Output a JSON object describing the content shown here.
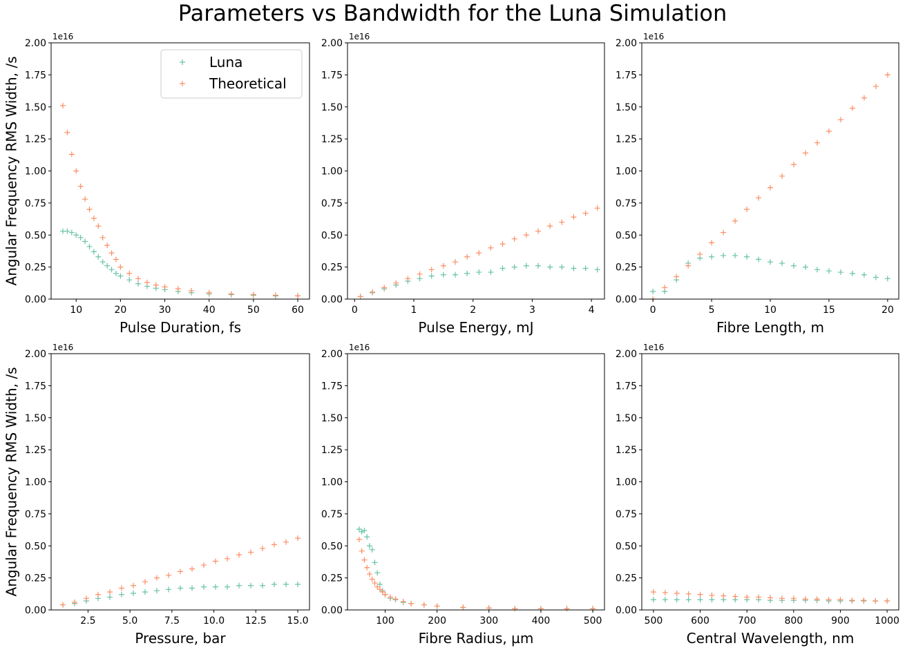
{
  "figure": {
    "suptitle": "Parameters vs Bandwidth for the Luna Simulation"
  },
  "colors": {
    "luna": "#66c2a5",
    "theoretical": "#fc8d62"
  },
  "chart_data": [
    {
      "type": "scatter",
      "xlabel": "Pulse Duration, fs",
      "ylabel": "Angular Frequency RMS Width, /s",
      "y_offset_label": "1e16",
      "xlim": [
        4.35,
        62.65
      ],
      "ylim": [
        0,
        2.0
      ],
      "xticks": [
        10,
        20,
        30,
        40,
        50,
        60
      ],
      "xtick_labels": [
        "10",
        "20",
        "30",
        "40",
        "50",
        "60"
      ],
      "yticks": [
        0,
        0.25,
        0.5,
        0.75,
        1.0,
        1.25,
        1.5,
        1.75,
        2.0
      ],
      "ytick_labels": [
        "0.00",
        "0.25",
        "0.50",
        "0.75",
        "1.00",
        "1.25",
        "1.50",
        "1.75",
        "2.00"
      ],
      "legend": {
        "position": "upper-right",
        "entries": [
          "Luna",
          "Theoretical"
        ]
      },
      "series": [
        {
          "name": "Luna",
          "marker": "+",
          "x": [
            7,
            8,
            9,
            10,
            11,
            12,
            13,
            14,
            15,
            16,
            17,
            18,
            19,
            20,
            22,
            24,
            26,
            28,
            30,
            33,
            36,
            40,
            45,
            50,
            55,
            60
          ],
          "y": [
            0.53,
            0.53,
            0.52,
            0.5,
            0.48,
            0.45,
            0.41,
            0.37,
            0.33,
            0.29,
            0.26,
            0.23,
            0.2,
            0.18,
            0.15,
            0.12,
            0.1,
            0.085,
            0.075,
            0.06,
            0.05,
            0.04,
            0.035,
            0.03,
            0.025,
            0.025
          ]
        },
        {
          "name": "Theoretical",
          "marker": "+",
          "x": [
            7,
            8,
            9,
            10,
            11,
            12,
            13,
            14,
            15,
            16,
            17,
            18,
            19,
            20,
            22,
            24,
            26,
            28,
            30,
            33,
            36,
            40,
            45,
            50,
            55,
            60
          ],
          "y": [
            1.51,
            1.3,
            1.13,
            1.0,
            0.88,
            0.78,
            0.7,
            0.63,
            0.57,
            0.48,
            0.42,
            0.36,
            0.31,
            0.25,
            0.2,
            0.16,
            0.13,
            0.11,
            0.095,
            0.08,
            0.065,
            0.05,
            0.04,
            0.035,
            0.03,
            0.025
          ]
        }
      ]
    },
    {
      "type": "scatter",
      "xlabel": "Pulse Energy, mJ",
      "y_offset_label": "1e16",
      "xlim": [
        -0.12,
        4.22
      ],
      "ylim": [
        0,
        2.0
      ],
      "xticks": [
        0,
        1,
        2,
        3,
        4
      ],
      "xtick_labels": [
        "0",
        "1",
        "2",
        "3",
        "4"
      ],
      "yticks": [
        0,
        0.25,
        0.5,
        0.75,
        1.0,
        1.25,
        1.5,
        1.75,
        2.0
      ],
      "ytick_labels": [
        "0.00",
        "0.25",
        "0.50",
        "0.75",
        "1.00",
        "1.25",
        "1.50",
        "1.75",
        "2.00"
      ],
      "series": [
        {
          "name": "Luna",
          "marker": "+",
          "x": [
            0.1,
            0.3,
            0.5,
            0.7,
            0.9,
            1.1,
            1.3,
            1.5,
            1.7,
            1.9,
            2.1,
            2.3,
            2.5,
            2.7,
            2.9,
            3.1,
            3.3,
            3.5,
            3.7,
            3.9,
            4.1
          ],
          "y": [
            0.02,
            0.05,
            0.08,
            0.11,
            0.14,
            0.16,
            0.18,
            0.19,
            0.19,
            0.2,
            0.21,
            0.21,
            0.24,
            0.25,
            0.26,
            0.26,
            0.25,
            0.25,
            0.24,
            0.24,
            0.23
          ]
        },
        {
          "name": "Theoretical",
          "marker": "+",
          "x": [
            0.1,
            0.3,
            0.5,
            0.7,
            0.9,
            1.1,
            1.3,
            1.5,
            1.7,
            1.9,
            2.1,
            2.3,
            2.5,
            2.7,
            2.9,
            3.1,
            3.3,
            3.5,
            3.7,
            3.9,
            4.1
          ],
          "y": [
            0.02,
            0.055,
            0.09,
            0.125,
            0.16,
            0.195,
            0.23,
            0.26,
            0.29,
            0.33,
            0.36,
            0.4,
            0.43,
            0.47,
            0.5,
            0.53,
            0.57,
            0.6,
            0.64,
            0.67,
            0.71
          ]
        }
      ]
    },
    {
      "type": "scatter",
      "xlabel": "Fibre Length, m",
      "y_offset_label": "1e16",
      "xlim": [
        -0.95,
        20.95
      ],
      "ylim": [
        0,
        2.0
      ],
      "xticks": [
        0,
        5,
        10,
        15,
        20
      ],
      "xtick_labels": [
        "0",
        "5",
        "10",
        "15",
        "20"
      ],
      "yticks": [
        0,
        0.25,
        0.5,
        0.75,
        1.0,
        1.25,
        1.5,
        1.75,
        2.0
      ],
      "ytick_labels": [
        "0.00",
        "0.25",
        "0.50",
        "0.75",
        "1.00",
        "1.25",
        "1.50",
        "1.75",
        "2.00"
      ],
      "series": [
        {
          "name": "Luna",
          "marker": "+",
          "x": [
            0,
            1,
            2,
            3,
            4,
            5,
            6,
            7,
            8,
            9,
            10,
            11,
            12,
            13,
            14,
            15,
            16,
            17,
            18,
            19,
            20
          ],
          "y": [
            0.06,
            0.06,
            0.15,
            0.28,
            0.32,
            0.33,
            0.34,
            0.34,
            0.33,
            0.31,
            0.29,
            0.28,
            0.26,
            0.25,
            0.23,
            0.22,
            0.21,
            0.2,
            0.19,
            0.17,
            0.16
          ]
        },
        {
          "name": "Theoretical",
          "marker": "+",
          "x": [
            0,
            1,
            2,
            3,
            4,
            5,
            6,
            7,
            8,
            9,
            10,
            11,
            12,
            13,
            14,
            15,
            16,
            17,
            18,
            19,
            20
          ],
          "y": [
            0,
            0.09,
            0.175,
            0.26,
            0.35,
            0.44,
            0.52,
            0.61,
            0.7,
            0.79,
            0.87,
            0.96,
            1.05,
            1.14,
            1.22,
            1.31,
            1.4,
            1.49,
            1.57,
            1.66,
            1.75
          ]
        }
      ]
    },
    {
      "type": "scatter",
      "xlabel": "Pressure, bar",
      "ylabel": "Angular Frequency RMS Width, /s",
      "y_offset_label": "1e16",
      "xlim": [
        0.3,
        15.7
      ],
      "ylim": [
        0,
        2.0
      ],
      "xticks": [
        2.5,
        5.0,
        7.5,
        10.0,
        12.5,
        15.0
      ],
      "xtick_labels": [
        "2.5",
        "5.0",
        "7.5",
        "10.0",
        "12.5",
        "15.0"
      ],
      "yticks": [
        0,
        0.25,
        0.5,
        0.75,
        1.0,
        1.25,
        1.5,
        1.75,
        2.0
      ],
      "ytick_labels": [
        "0.00",
        "0.25",
        "0.50",
        "0.75",
        "1.00",
        "1.25",
        "1.50",
        "1.75",
        "2.00"
      ],
      "series": [
        {
          "name": "Luna",
          "marker": "+",
          "x": [
            1,
            1.7,
            2.4,
            3.1,
            3.8,
            4.5,
            5.2,
            5.9,
            6.6,
            7.3,
            8.0,
            8.7,
            9.4,
            10.1,
            10.8,
            11.5,
            12.2,
            12.9,
            13.6,
            14.3,
            15
          ],
          "y": [
            0.04,
            0.05,
            0.07,
            0.09,
            0.1,
            0.12,
            0.13,
            0.14,
            0.15,
            0.16,
            0.17,
            0.17,
            0.18,
            0.18,
            0.18,
            0.19,
            0.19,
            0.19,
            0.2,
            0.2,
            0.2
          ]
        },
        {
          "name": "Theoretical",
          "marker": "+",
          "x": [
            1,
            1.7,
            2.4,
            3.1,
            3.8,
            4.5,
            5.2,
            5.9,
            6.6,
            7.3,
            8.0,
            8.7,
            9.4,
            10.1,
            10.8,
            11.5,
            12.2,
            12.9,
            13.6,
            14.3,
            15
          ],
          "y": [
            0.04,
            0.06,
            0.09,
            0.12,
            0.14,
            0.17,
            0.19,
            0.22,
            0.25,
            0.27,
            0.3,
            0.32,
            0.35,
            0.38,
            0.4,
            0.43,
            0.45,
            0.48,
            0.51,
            0.53,
            0.56
          ]
        }
      ]
    },
    {
      "type": "scatter",
      "xlabel": "Fibre Radius, µm",
      "y_offset_label": "1e16",
      "xlim": [
        27.5,
        522.5
      ],
      "ylim": [
        0,
        2.0
      ],
      "xticks": [
        100,
        200,
        300,
        400,
        500
      ],
      "xtick_labels": [
        "100",
        "200",
        "300",
        "400",
        "500"
      ],
      "yticks": [
        0,
        0.25,
        0.5,
        0.75,
        1.0,
        1.25,
        1.5,
        1.75,
        2.0
      ],
      "ytick_labels": [
        "0.00",
        "0.25",
        "0.50",
        "0.75",
        "1.00",
        "1.25",
        "1.50",
        "1.75",
        "2.00"
      ],
      "series": [
        {
          "name": "Luna",
          "marker": "+",
          "x": [
            50,
            55,
            60,
            65,
            70,
            75,
            80,
            85,
            90,
            95,
            100,
            110,
            120,
            135,
            150,
            175,
            200,
            250,
            300,
            350,
            400,
            450,
            500
          ],
          "y": [
            0.63,
            0.61,
            0.62,
            0.57,
            0.5,
            0.47,
            0.37,
            0.29,
            0.2,
            0.15,
            0.12,
            0.09,
            0.08,
            0.06,
            0.05,
            0.04,
            0.03,
            0.02,
            0.015,
            0.01,
            0.01,
            0.01,
            0.01
          ]
        },
        {
          "name": "Theoretical",
          "marker": "+",
          "x": [
            50,
            55,
            60,
            65,
            70,
            75,
            80,
            85,
            90,
            95,
            100,
            110,
            120,
            135,
            150,
            175,
            200,
            250,
            300,
            350,
            400,
            450,
            500
          ],
          "y": [
            0.55,
            0.46,
            0.39,
            0.33,
            0.28,
            0.24,
            0.21,
            0.18,
            0.16,
            0.14,
            0.12,
            0.1,
            0.085,
            0.065,
            0.05,
            0.04,
            0.03,
            0.02,
            0.015,
            0.01,
            0.01,
            0.01,
            0.01
          ]
        }
      ]
    },
    {
      "type": "scatter",
      "xlabel": "Central Wavelength, nm",
      "y_offset_label": "1e16",
      "xlim": [
        475,
        1025
      ],
      "ylim": [
        0,
        2.0
      ],
      "xticks": [
        500,
        600,
        700,
        800,
        900,
        1000
      ],
      "xtick_labels": [
        "500",
        "600",
        "700",
        "800",
        "900",
        "1000"
      ],
      "yticks": [
        0,
        0.25,
        0.5,
        0.75,
        1.0,
        1.25,
        1.5,
        1.75,
        2.0
      ],
      "ytick_labels": [
        "0.00",
        "0.25",
        "0.50",
        "0.75",
        "1.00",
        "1.25",
        "1.50",
        "1.75",
        "2.00"
      ],
      "series": [
        {
          "name": "Luna",
          "marker": "+",
          "x": [
            500,
            525,
            550,
            575,
            600,
            625,
            650,
            675,
            700,
            725,
            750,
            775,
            800,
            825,
            850,
            875,
            900,
            925,
            950,
            975,
            1000
          ],
          "y": [
            0.08,
            0.08,
            0.08,
            0.08,
            0.08,
            0.08,
            0.08,
            0.08,
            0.08,
            0.08,
            0.075,
            0.075,
            0.075,
            0.075,
            0.075,
            0.07,
            0.07,
            0.07,
            0.07,
            0.07,
            0.07
          ]
        },
        {
          "name": "Theoretical",
          "marker": "+",
          "x": [
            500,
            525,
            550,
            575,
            600,
            625,
            650,
            675,
            700,
            725,
            750,
            775,
            800,
            825,
            850,
            875,
            900,
            925,
            950,
            975,
            1000
          ],
          "y": [
            0.14,
            0.135,
            0.13,
            0.125,
            0.12,
            0.115,
            0.11,
            0.105,
            0.1,
            0.1,
            0.095,
            0.09,
            0.09,
            0.085,
            0.085,
            0.08,
            0.08,
            0.075,
            0.075,
            0.07,
            0.07
          ]
        }
      ]
    }
  ]
}
